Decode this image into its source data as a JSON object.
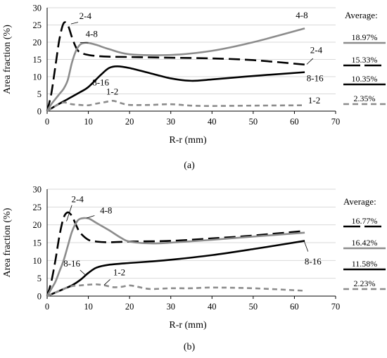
{
  "colors": {
    "grid": "#d9d9d9",
    "axis": "#000000",
    "black": "#000000",
    "gray": "#8c8c8c"
  },
  "chart_data": [
    {
      "type": "line",
      "caption": "(a)",
      "xlabel": "R-r (mm)",
      "ylabel": "Area fraction (%)",
      "xlim": [
        0,
        70
      ],
      "ylim": [
        0,
        30
      ],
      "xticks": [
        "0",
        "10",
        "20",
        "30",
        "40",
        "50",
        "60",
        "70"
      ],
      "yticks": [
        "0",
        "5",
        "10",
        "15",
        "20",
        "25",
        "30"
      ],
      "grid": "horizontal",
      "series": [
        {
          "name": "2-4",
          "color": "#000000",
          "dash": "long-dash",
          "average": "15.33%",
          "x": [
            0,
            1,
            2,
            3,
            4,
            5,
            6,
            7,
            8,
            10,
            12,
            15,
            20,
            30,
            40,
            50,
            62.5
          ],
          "y": [
            0,
            5,
            13,
            21,
            25.5,
            25,
            21.5,
            18.5,
            17,
            16.3,
            16,
            15.8,
            15.7,
            15.5,
            15.3,
            14.8,
            13.5
          ]
        },
        {
          "name": "4-8",
          "color": "#8c8c8c",
          "dash": "solid",
          "average": "18.97%",
          "x": [
            0,
            1,
            2,
            3,
            4,
            5,
            6,
            7,
            8,
            9,
            10,
            12,
            15,
            20,
            30,
            40,
            50,
            62.5
          ],
          "y": [
            0,
            2,
            3.5,
            5,
            6.5,
            9,
            14,
            17.5,
            19.3,
            19.8,
            19.8,
            19.2,
            18,
            16.5,
            16.3,
            17.5,
            20,
            24
          ]
        },
        {
          "name": "8-16",
          "color": "#000000",
          "dash": "solid",
          "average": "10.35%",
          "x": [
            0,
            2,
            5,
            8,
            10,
            13,
            15,
            17,
            20,
            25,
            30,
            35,
            40,
            50,
            62.5
          ],
          "y": [
            0,
            1.5,
            3.5,
            5.5,
            7,
            10.5,
            12.5,
            13,
            12.5,
            11,
            9.5,
            8.8,
            9.2,
            10.2,
            11.3
          ]
        },
        {
          "name": "1-2",
          "color": "#8c8c8c",
          "dash": "dash",
          "average": "2.35%",
          "x": [
            0,
            2,
            4,
            6,
            8,
            10,
            12,
            14,
            16,
            18,
            20,
            25,
            30,
            35,
            40,
            50,
            62.5
          ],
          "y": [
            0,
            1.5,
            2.5,
            2,
            1.8,
            1.7,
            2.2,
            2.6,
            3,
            2.3,
            1.8,
            1.8,
            2,
            1.6,
            1.5,
            1.6,
            1.7
          ]
        }
      ],
      "labels": [
        {
          "text": "2-4",
          "x": 7.8,
          "y": 26.7,
          "anchor": "start"
        },
        {
          "text": "4-8",
          "x": 10.8,
          "y": 21.5,
          "anchor": "middle"
        },
        {
          "text": "4-8",
          "x": 61.8,
          "y": 26.9,
          "anchor": "middle"
        },
        {
          "text": "2-4",
          "x": 65.3,
          "y": 16.8,
          "anchor": "middle"
        },
        {
          "text": "8-16",
          "x": 13,
          "y": 7.5,
          "anchor": "middle"
        },
        {
          "text": "8-16",
          "x": 65,
          "y": 8.7,
          "anchor": "middle"
        },
        {
          "text": "1-2",
          "x": 15.8,
          "y": 4.8,
          "anchor": "middle"
        },
        {
          "text": "1-2",
          "x": 64.8,
          "y": 2.2,
          "anchor": "middle"
        }
      ],
      "leaders": [
        {
          "x1": 5.8,
          "y1": 25.3,
          "x2": 7.5,
          "y2": 25.8
        },
        {
          "x1": 8.0,
          "y1": 19.9,
          "x2": 10.0,
          "y2": 19.8
        },
        {
          "x1": 63.0,
          "y1": 13.6,
          "x2": 64.5,
          "y2": 15.3
        }
      ],
      "average_title": "Average:"
    },
    {
      "type": "line",
      "caption": "(b)",
      "xlabel": "R-r (mm)",
      "ylabel": "Area fraction (%)",
      "xlim": [
        0,
        70
      ],
      "ylim": [
        0,
        30
      ],
      "xticks": [
        "0",
        "10",
        "20",
        "30",
        "40",
        "50",
        "60",
        "70"
      ],
      "yticks": [
        "0",
        "5",
        "10",
        "15",
        "20",
        "25",
        "30"
      ],
      "grid": "horizontal",
      "series": [
        {
          "name": "2-4",
          "color": "#000000",
          "dash": "long-dash",
          "average": "16.77%",
          "x": [
            0,
            1,
            2,
            3,
            4,
            5,
            6,
            7,
            8,
            10,
            12,
            15,
            20,
            30,
            40,
            50,
            62.5
          ],
          "y": [
            0,
            4,
            10,
            17,
            22,
            23.5,
            22.5,
            20,
            17.8,
            15.8,
            15.3,
            15.1,
            15.3,
            15.5,
            16.2,
            17,
            18.3
          ]
        },
        {
          "name": "4-8",
          "color": "#8c8c8c",
          "dash": "solid",
          "average": "16.42%",
          "x": [
            0,
            1,
            2,
            3,
            4,
            5,
            6,
            7,
            8,
            10,
            12,
            15,
            18,
            20,
            25,
            30,
            40,
            50,
            62.5
          ],
          "y": [
            0,
            2,
            4,
            7,
            10,
            14,
            18,
            20.5,
            21.7,
            21.8,
            20.5,
            18.5,
            16.3,
            15.3,
            14.8,
            15,
            15.8,
            16.7,
            17.8
          ]
        },
        {
          "name": "8-16",
          "color": "#000000",
          "dash": "solid",
          "average": "11.58%",
          "x": [
            0,
            2,
            4,
            6,
            8,
            10,
            12,
            15,
            20,
            25,
            30,
            40,
            50,
            62.5
          ],
          "y": [
            0,
            1,
            2,
            3,
            4.5,
            6.5,
            8,
            8.8,
            9.3,
            9.7,
            10.2,
            11.5,
            13.2,
            15.5
          ]
        },
        {
          "name": "1-2",
          "color": "#8c8c8c",
          "dash": "dash",
          "average": "2.23%",
          "x": [
            0,
            2,
            4,
            6,
            8,
            10,
            12,
            14,
            16,
            18,
            20,
            22,
            25,
            30,
            35,
            40,
            50,
            62.5
          ],
          "y": [
            0,
            1,
            2,
            2.8,
            3,
            3.2,
            3.3,
            3,
            2.5,
            2.6,
            3,
            2.6,
            2,
            2.2,
            2.2,
            2.4,
            2.2,
            1.5
          ]
        }
      ],
      "labels": [
        {
          "text": "2-4",
          "x": 5.9,
          "y": 26.3,
          "anchor": "start"
        },
        {
          "text": "4-8",
          "x": 14.3,
          "y": 23.2,
          "anchor": "middle"
        },
        {
          "text": "8-16",
          "x": 6,
          "y": 8.3,
          "anchor": "middle"
        },
        {
          "text": "8-16",
          "x": 64.5,
          "y": 8.9,
          "anchor": "middle"
        },
        {
          "text": "1-2",
          "x": 17.5,
          "y": 5.8,
          "anchor": "middle"
        }
      ],
      "leaders": [
        {
          "x1": 4.7,
          "y1": 21.0,
          "x2": 6.0,
          "y2": 25.5
        },
        {
          "x1": 9.6,
          "y1": 21.9,
          "x2": 11.5,
          "y2": 22.6
        },
        {
          "x1": 9.4,
          "y1": 5.8,
          "x2": 8.0,
          "y2": 7.3
        },
        {
          "x1": 62.4,
          "y1": 15.3,
          "x2": 63.3,
          "y2": 12.5
        },
        {
          "x1": 13.8,
          "y1": 3.1,
          "x2": 15.3,
          "y2": 4.7
        }
      ],
      "average_title": "Average:"
    }
  ]
}
